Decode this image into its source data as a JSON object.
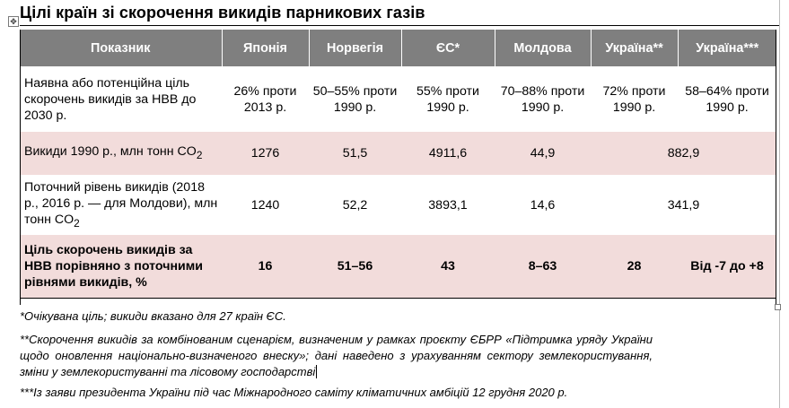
{
  "title": "Цілі країн зі скорочення викидів парникових газів",
  "table": {
    "headers": [
      "Показник",
      "Японія",
      "Норвегія",
      "ЄС*",
      "Молдова",
      "Україна**",
      "Україна***"
    ],
    "rows": [
      {
        "label": "Наявна або потенційна ціль скорочень викидів за НВВ до 2030 р.",
        "cells": [
          "26% проти 2013 р.",
          "50–55% проти 1990 р.",
          "55% проти 1990 р.",
          "70–88% проти 1990 р.",
          "72% проти 1990 р.",
          "58–64% проти 1990 р."
        ]
      },
      {
        "label_main": "Викиди 1990 р., млн тонн CO",
        "label_sub": "2",
        "cells": [
          "1276",
          "51,5",
          "4911,6",
          "44,9",
          "882,9"
        ]
      },
      {
        "label_main": "Поточний рівень викидів (2018 р., 2016 р. — для Молдови), млн тонн CO",
        "label_sub": "2",
        "cells": [
          "1240",
          "52,2",
          "3893,1",
          "14,6",
          "341,9"
        ]
      },
      {
        "label": "Ціль скорочень викидів за НВВ порівняно з поточними рівнями викидів, %",
        "cells": [
          "16",
          "51–56",
          "43",
          "8–63",
          "28",
          "Від -7 до +8"
        ]
      }
    ]
  },
  "notes": [
    "*Очікувана ціль; викиди вказано для 27 країн ЄС.",
    "**Скорочення викидів за комбінованим сценарієм, визначеним у рамках проєкту ЄБРР «Підтримка уряду України щодо оновлення національно-визначеного внеску»; дані наведено з урахуванням сектору землекористування, зміни у землекористуванні та лісовому господарстві",
    "***Із заяви президента України під час Міжнародного саміту кліматичних амбіцій 12 грудня 2020 р."
  ]
}
